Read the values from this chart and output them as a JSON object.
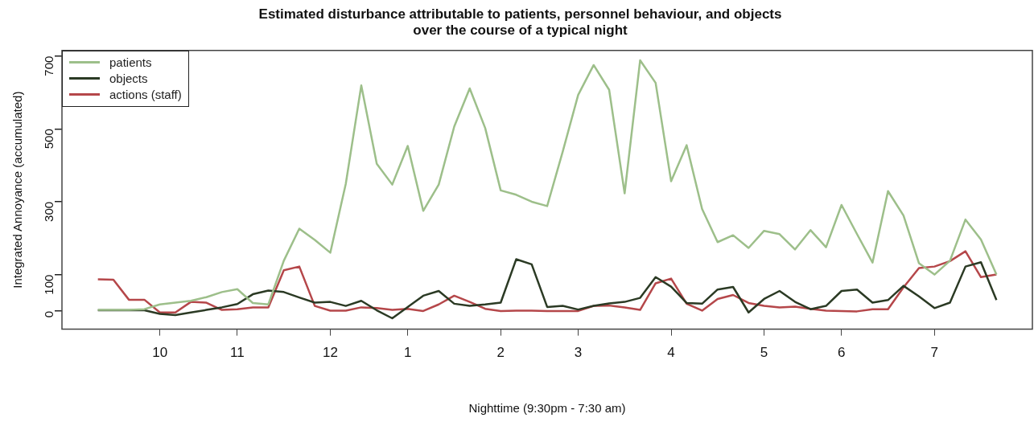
{
  "chart_data": {
    "type": "line",
    "title": "Estimated disturbance attributable to patients, personnel behaviour, and objects\nover the course of a typical night",
    "xlabel": "Nighttime (9:30pm - 7:30 am)",
    "ylabel": "Integrated Annoyance (accumulated)",
    "categories": [
      null,
      null,
      null,
      null,
      "10",
      null,
      null,
      null,
      null,
      "11",
      null,
      null,
      null,
      null,
      null,
      "12",
      null,
      null,
      null,
      null,
      "1",
      null,
      null,
      null,
      null,
      null,
      "2",
      null,
      null,
      null,
      null,
      "3",
      null,
      null,
      null,
      null,
      null,
      "4",
      null,
      null,
      null,
      null,
      null,
      "5",
      null,
      null,
      null,
      null,
      "6",
      null,
      null,
      null,
      null,
      null,
      "7",
      null,
      null,
      null,
      null
    ],
    "series": [
      {
        "name": "patients",
        "color": "#9dbf8a",
        "values": [
          3,
          3,
          3,
          5,
          18,
          23,
          28,
          38,
          52,
          60,
          22,
          18,
          138,
          226,
          195,
          160,
          349,
          619,
          404,
          347,
          453,
          275,
          347,
          506,
          611,
          502,
          331,
          319,
          300,
          288,
          437,
          593,
          675,
          607,
          323,
          688,
          626,
          356,
          455,
          280,
          189,
          208,
          173,
          220,
          211,
          169,
          222,
          175,
          291,
          211,
          133,
          329,
          262,
          131,
          100,
          138,
          251,
          196,
          100
        ]
      },
      {
        "name": "objects",
        "color": "#2b3a24",
        "values": [
          2,
          2,
          2,
          2,
          -8,
          -11,
          -4,
          3,
          10,
          19,
          46,
          56,
          52,
          37,
          23,
          25,
          14,
          28,
          2,
          -20,
          11,
          42,
          55,
          20,
          14,
          18,
          23,
          142,
          128,
          11,
          14,
          4,
          14,
          21,
          25,
          36,
          93,
          67,
          22,
          20,
          59,
          66,
          -4,
          33,
          55,
          25,
          5,
          14,
          55,
          59,
          23,
          30,
          69,
          40,
          8,
          23,
          122,
          134,
          30
        ]
      },
      {
        "name": "actions (staff)",
        "color": "#b5474a",
        "values": [
          87,
          86,
          31,
          31,
          -4,
          -4,
          25,
          23,
          3,
          5,
          10,
          10,
          112,
          122,
          14,
          1,
          1,
          10,
          8,
          3,
          6,
          0,
          18,
          42,
          25,
          6,
          0,
          1,
          1,
          0,
          0,
          0,
          14,
          15,
          10,
          3,
          76,
          89,
          20,
          1,
          33,
          44,
          22,
          14,
          10,
          12,
          6,
          1,
          0,
          -1,
          5,
          5,
          65,
          118,
          122,
          137,
          164,
          93,
          100
        ]
      }
    ],
    "ylim": [
      -50,
      715
    ],
    "yticks": [
      0,
      100,
      300,
      500,
      700
    ],
    "legend": "top left",
    "marker": "none",
    "line_style": "solid"
  }
}
